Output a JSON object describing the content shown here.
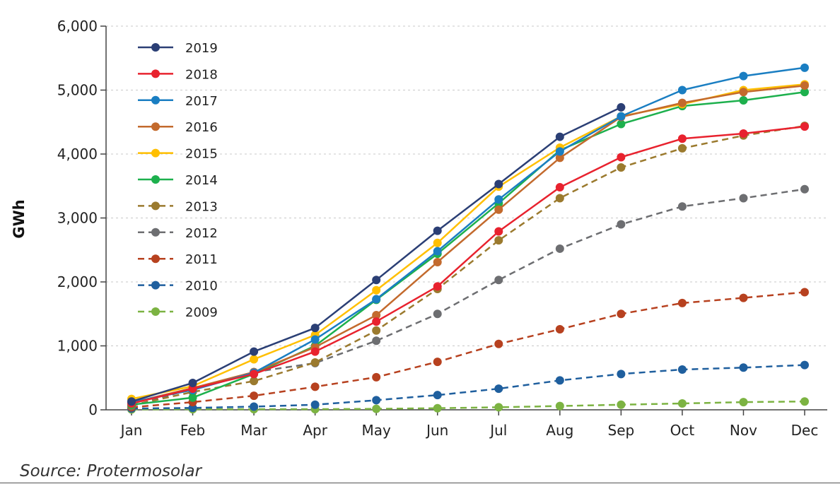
{
  "chart_data": {
    "type": "line",
    "title": "",
    "xlabel": "",
    "ylabel": "GWh",
    "categories": [
      "Jan",
      "Feb",
      "Mar",
      "Apr",
      "May",
      "Jun",
      "Jul",
      "Aug",
      "Sep",
      "Oct",
      "Nov",
      "Dec"
    ],
    "ylim": [
      0,
      6000
    ],
    "yticks": [
      0,
      1000,
      2000,
      3000,
      4000,
      5000,
      6000
    ],
    "ytick_labels": [
      "0",
      "1,000",
      "2,000",
      "3,000",
      "4,000",
      "5,000",
      "6,000"
    ],
    "grid": "horizontal dotted",
    "legend_position": "top-left",
    "series": [
      {
        "name": "2019",
        "color": "#2b3f75",
        "dashed": false,
        "values": [
          130,
          420,
          910,
          1280,
          2030,
          2800,
          3530,
          4270,
          4730,
          null,
          null,
          null
        ]
      },
      {
        "name": "2018",
        "color": "#e8222e",
        "dashed": false,
        "values": [
          100,
          330,
          560,
          910,
          1380,
          1930,
          2790,
          3480,
          3950,
          4240,
          4320,
          4430
        ]
      },
      {
        "name": "2017",
        "color": "#1a7ec2",
        "dashed": false,
        "values": [
          120,
          310,
          580,
          1100,
          1730,
          2480,
          3290,
          4040,
          4590,
          5000,
          5220,
          5350
        ]
      },
      {
        "name": "2016",
        "color": "#c36a2d",
        "dashed": false,
        "values": [
          110,
          340,
          590,
          980,
          1480,
          2310,
          3130,
          3940,
          4580,
          4800,
          4970,
          5070
        ]
      },
      {
        "name": "2015",
        "color": "#ffbf00",
        "dashed": false,
        "values": [
          170,
          370,
          790,
          1170,
          1870,
          2610,
          3490,
          4100,
          4590,
          4780,
          5000,
          5090
        ]
      },
      {
        "name": "2014",
        "color": "#1db04d",
        "dashed": false,
        "values": [
          80,
          190,
          560,
          1000,
          1720,
          2440,
          3230,
          4060,
          4470,
          4750,
          4840,
          4970
        ]
      },
      {
        "name": "2013",
        "color": "#9b7a2e",
        "dashed": true,
        "values": [
          70,
          280,
          450,
          740,
          1240,
          1890,
          2650,
          3310,
          3790,
          4090,
          4290,
          4440
        ]
      },
      {
        "name": "2012",
        "color": "#6d6e71",
        "dashed": true,
        "values": [
          60,
          330,
          590,
          730,
          1080,
          1500,
          2030,
          2520,
          2900,
          3180,
          3310,
          3450
        ]
      },
      {
        "name": "2011",
        "color": "#b7411f",
        "dashed": true,
        "values": [
          40,
          120,
          220,
          360,
          510,
          750,
          1030,
          1260,
          1500,
          1670,
          1750,
          1840
        ]
      },
      {
        "name": "2010",
        "color": "#1f5f9e",
        "dashed": true,
        "values": [
          20,
          30,
          50,
          80,
          150,
          230,
          330,
          460,
          560,
          630,
          660,
          700
        ]
      },
      {
        "name": "2009",
        "color": "#7cb342",
        "dashed": true,
        "values": [
          5,
          10,
          10,
          10,
          15,
          25,
          40,
          60,
          80,
          100,
          120,
          130
        ]
      }
    ]
  },
  "source": "Source: Protermosolar"
}
